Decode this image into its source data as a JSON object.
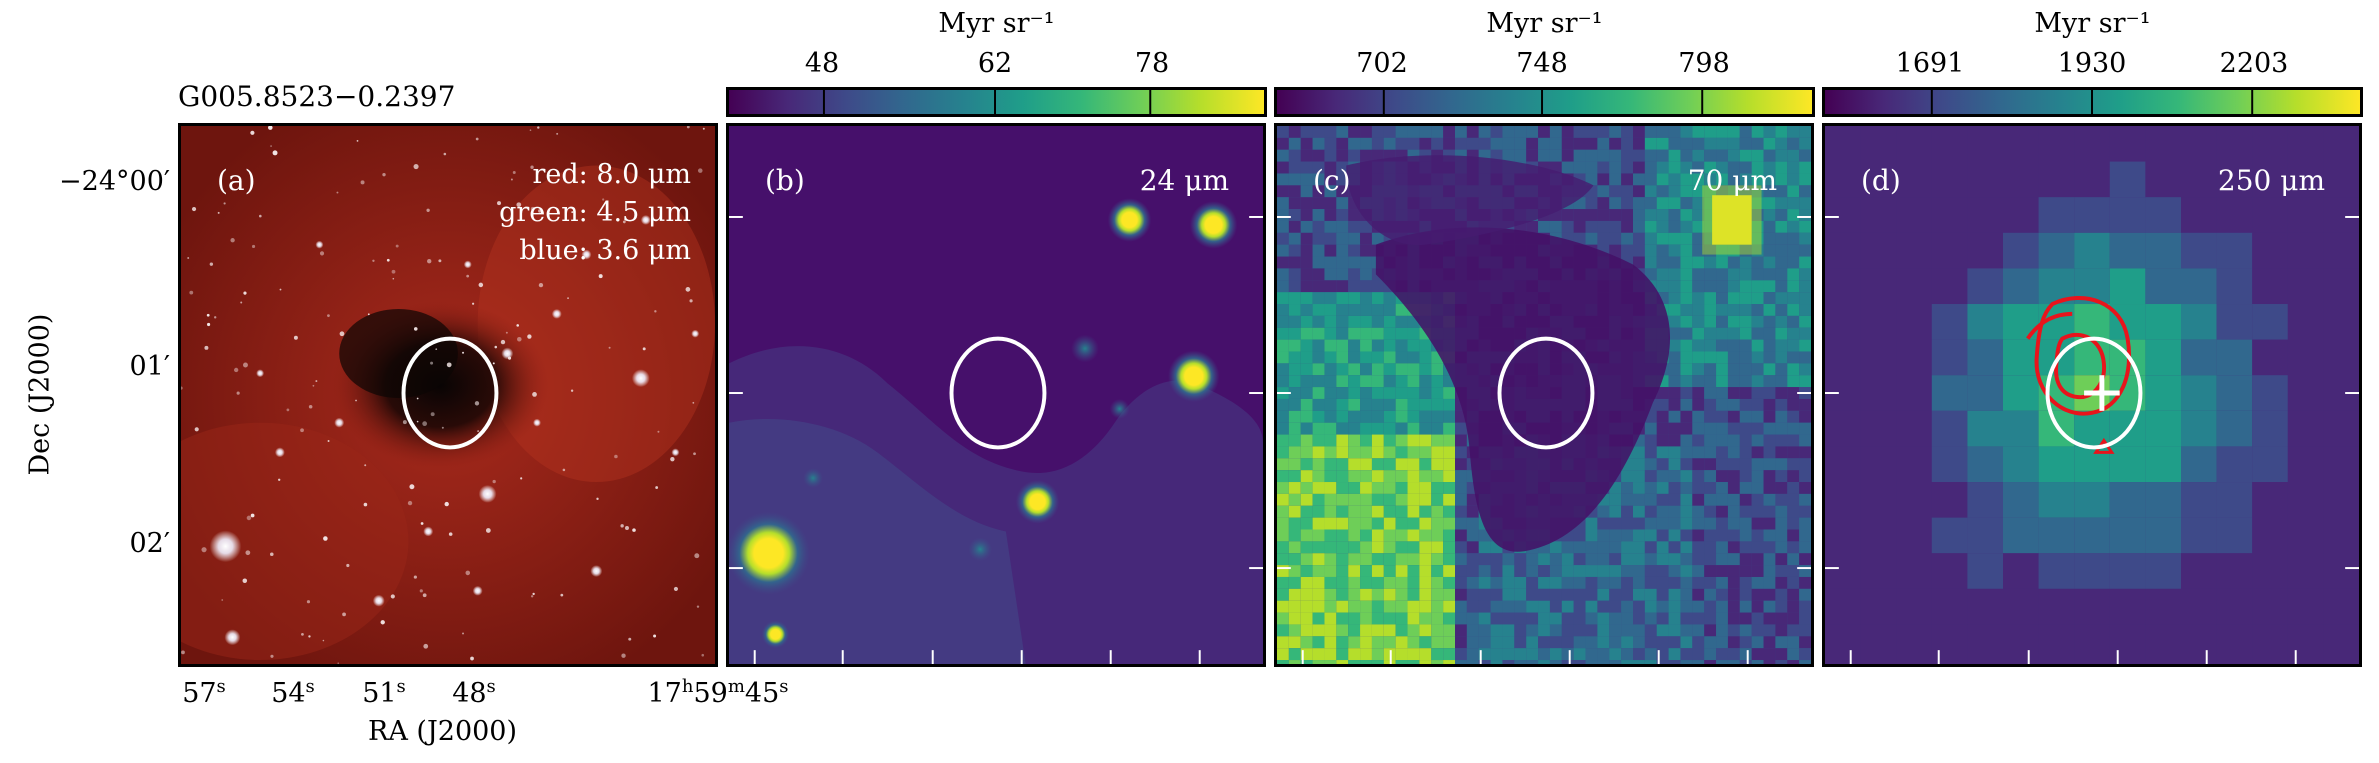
{
  "figure": {
    "source_name": "G005.8523−0.2397",
    "axes": {
      "xlabel": "RA (J2000)",
      "ylabel": "Dec (J2000)",
      "yticks": [
        "−24°00′",
        "01′",
        "02′"
      ],
      "xticks": [
        {
          "value": "57",
          "unit": "s"
        },
        {
          "value": "54",
          "unit": "s"
        },
        {
          "value": "51",
          "unit": "s"
        },
        {
          "value": "48",
          "unit": "s"
        },
        {
          "value": "17",
          "unit": "h",
          "value2": "59",
          "unit2": "m",
          "value3": "45",
          "unit3": "s"
        }
      ]
    },
    "panels": [
      {
        "id": "a",
        "label": "(a)",
        "rgb": [
          "red: 8.0 μm",
          "green: 4.5 μm",
          "blue: 3.6 μm"
        ]
      },
      {
        "id": "b",
        "label": "(b)",
        "wavelength": "24 μm",
        "colorbar": {
          "title": "Myr sr⁻¹",
          "ticks": [
            "48",
            "62",
            "78"
          ]
        }
      },
      {
        "id": "c",
        "label": "(c)",
        "wavelength": "70 μm",
        "colorbar": {
          "title": "Myr sr⁻¹",
          "ticks": [
            "702",
            "748",
            "798"
          ]
        }
      },
      {
        "id": "d",
        "label": "(d)",
        "wavelength": "250 μm",
        "colorbar": {
          "title": "Myr sr⁻¹",
          "ticks": [
            "1691",
            "1930",
            "2203"
          ]
        }
      }
    ],
    "colors": {
      "viridis": [
        "#440154",
        "#482878",
        "#3e4a89",
        "#31688e",
        "#26828e",
        "#1f9e89",
        "#35b779",
        "#6ece58",
        "#b5de2b",
        "#fde725"
      ],
      "ir_background": "#8a1c12",
      "ellipse": "#ffffff",
      "contour": "#e8141c"
    }
  }
}
